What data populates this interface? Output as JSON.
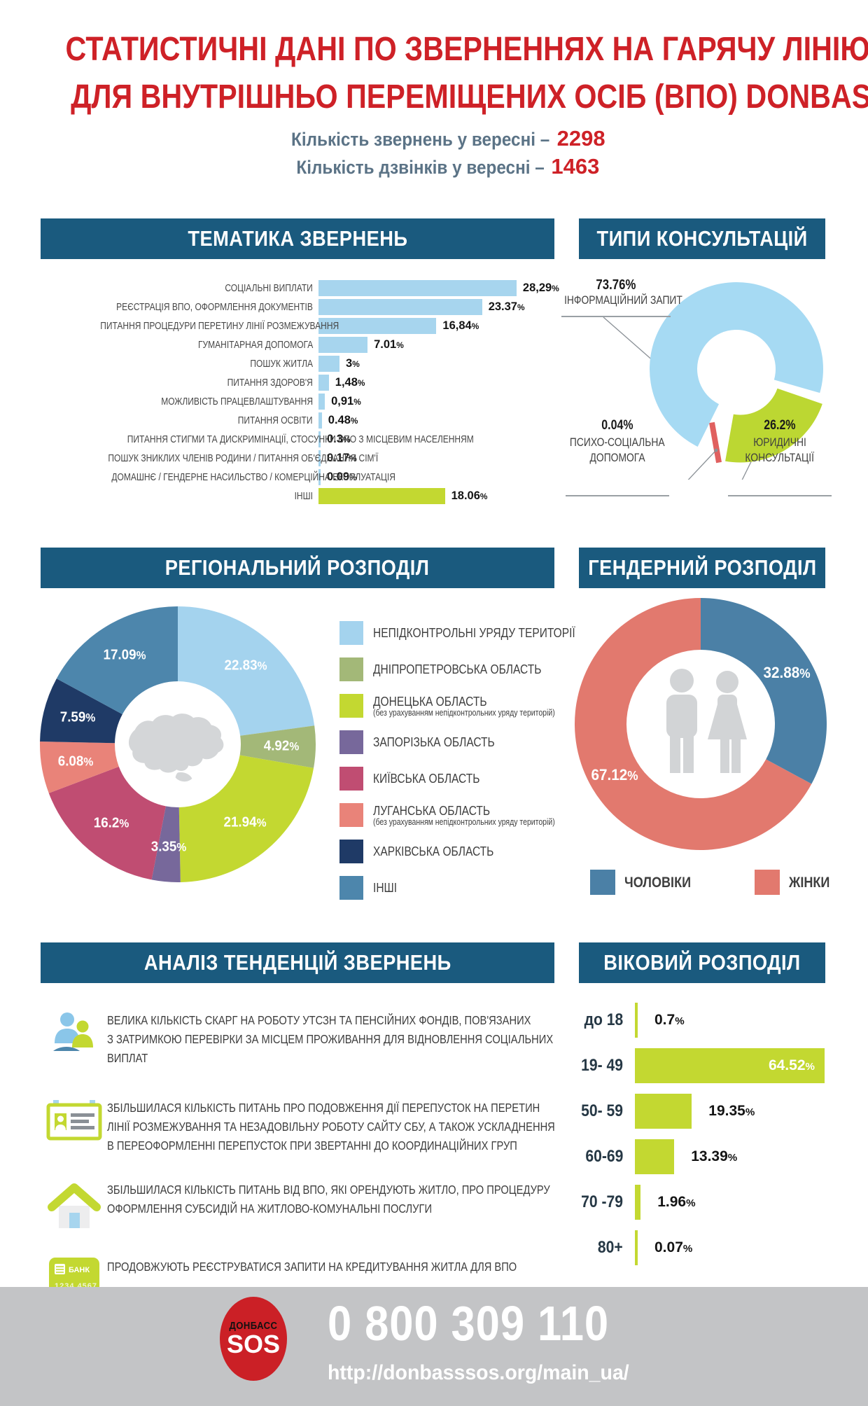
{
  "header": {
    "title_line1": "СТАТИСТИЧНІ ДАНІ ПО ЗВЕРНЕННЯХ НА ГАРЯЧУ ЛІНІЮ",
    "title_line2": "ДЛЯ ВНУТРІШНЬО ПЕРЕМІЩЕНИХ ОСІБ (ВПО) DONBAS SOS",
    "appeals_label": "Кількість звернень у вересні –",
    "appeals_value": "2298",
    "calls_label": "Кількість дзвінків у вересні –",
    "calls_value": "1463"
  },
  "sections": {
    "topics_title": "ТЕМАТИКА ЗВЕРНЕНЬ",
    "types_title": "ТИПИ КОНСУЛЬТАЦІЙ",
    "regional_title": "РЕГІОНАЛЬНИЙ РОЗПОДІЛ",
    "gender_title": "ГЕНДЕРНИЙ РОЗПОДІЛ",
    "trends_title": "АНАЛІЗ ТЕНДЕНЦІЙ ЗВЕРНЕНЬ",
    "age_title": "ВІКОВИЙ РОЗПОДІЛ"
  },
  "colors": {
    "accent_red": "#ce2127",
    "band_blue": "#1a5a7e",
    "slate_text": "#5b7386",
    "bar_blue": "#a7d5ee",
    "lime": "#c3d831",
    "footer_gray": "#c3c4c6"
  },
  "chart_data": [
    {
      "id": "topics",
      "type": "bar",
      "orientation": "horizontal",
      "title": "ТЕМАТИКА ЗВЕРНЕНЬ",
      "categories": [
        "СОЦІАЛЬНІ ВИПЛАТИ",
        "РЕЄСТРАЦІЯ ВПО, ОФОРМЛЕННЯ ДОКУМЕНТІВ",
        "ПИТАННЯ ПРОЦЕДУРИ ПЕРЕТИНУ  ЛІНІЇ РОЗМЕЖУВАННЯ",
        "ГУМАНІТАРНАЯ ДОПОМОГА",
        "ПОШУК ЖИТЛА",
        "ПИТАННЯ ЗДОРОВ'Я",
        "МОЖЛИВІСТЬ ПРАЦЕВЛАШТУВАННЯ",
        "ПИТАННЯ ОСВІТИ",
        "ПИТАННЯ СТИГМИ ТА ДИСКРИМІНАЦІЇ, СТОСУНКИ ВПО З МІСЦЕВИМ НАСЕЛЕННЯМ",
        "ПОШУК ЗНИКЛИХ ЧЛЕНІВ РОДИНИ / ПИТАННЯ ОБ'ЄДНАННЯ СІМ'Ї",
        "ДОМАШНЄ / ГЕНДЕРНЕ НАСИЛЬСТВО / КОМЕРЦІЙНА ЕКСПЛУАТАЦІЯ",
        "ІНШІ"
      ],
      "values": [
        28.29,
        23.37,
        16.84,
        7.01,
        3,
        1.48,
        0.91,
        0.48,
        0.3,
        0.17,
        0.09,
        18.06
      ],
      "value_labels": [
        "28,29%",
        "23.37%",
        "16,84%",
        "7.01%",
        "3%",
        "1,48%",
        "0,91%",
        "0.48%",
        "0.3%",
        "0.17%",
        "0.09%",
        "18.06%"
      ],
      "bar_colors": [
        "#a7d5ee",
        "#a7d5ee",
        "#a7d5ee",
        "#a7d5ee",
        "#a7d5ee",
        "#a7d5ee",
        "#a7d5ee",
        "#a7d5ee",
        "#a7d5ee",
        "#a7d5ee",
        "#a7d5ee",
        "#c3d831"
      ]
    },
    {
      "id": "types",
      "type": "donut",
      "title": "ТИПИ КОНСУЛЬТАЦІЙ",
      "slices": [
        {
          "label": "ІНФОРМАЦІЙНИЙ ЗАПИТ",
          "label_lines": [
            "ІНФОРМАЦІЙНИЙ ЗАПИТ"
          ],
          "value": 73.76,
          "display": "73.76%",
          "color": "#a6daf3"
        },
        {
          "label": "ЮРИДИЧНІ КОНСУЛЬТАЦІЇ",
          "label_lines": [
            "ЮРИДИЧНІ",
            "КОНСУЛЬТАЦІЇ"
          ],
          "value": 26.2,
          "display": "26.2%",
          "color": "#bcd732"
        },
        {
          "label": "ПСИХО-СОЦІАЛЬНА ДОПОМОГА",
          "label_lines": [
            "ПСИХО-СОЦІАЛЬНА",
            "ДОПОМОГА"
          ],
          "value": 0.04,
          "display": "0.04%",
          "color": "#e0605f"
        }
      ]
    },
    {
      "id": "regional",
      "type": "donut",
      "title": "РЕГІОНАЛЬНИЙ РОЗПОДІЛ",
      "slices": [
        {
          "label": "НЕПІДКОНТРОЛЬНІ УРЯДУ ТЕРИТОРІЇ",
          "value": 22.83,
          "display": "22.83%",
          "color": "#a4d3ee"
        },
        {
          "label": "ДНІПРОПЕТРОВСЬКА ОБЛАСТЬ",
          "value": 4.92,
          "display": "4.92%",
          "color": "#a3b878"
        },
        {
          "label": "ДОНЕЦЬКА ОБЛАСТЬ",
          "note": "(без урахуванням непідконтрольних уряду територій)",
          "value": 21.94,
          "display": "21.94%",
          "color": "#c3d831"
        },
        {
          "label": "ЗАПОРІЗЬКА ОБЛАСТЬ",
          "value": 3.35,
          "display": "3.35%",
          "color": "#77689b"
        },
        {
          "label": "КИЇВСЬКА ОБЛАСТЬ",
          "value": 16.2,
          "display": "16.2%",
          "color": "#c04d72"
        },
        {
          "label": "ЛУГАНСЬКА ОБЛАСТЬ",
          "note": "(без урахуванням непідконтрольних уряду територій)",
          "value": 6.08,
          "display": "6.08%",
          "color": "#e98379"
        },
        {
          "label": "ХАРКІВСЬКА ОБЛАСТЬ",
          "value": 7.59,
          "display": "7.59%",
          "color": "#1f3a66"
        },
        {
          "label": "ІНШІ",
          "value": 17.09,
          "display": "17.09%",
          "color": "#4d86ac"
        }
      ]
    },
    {
      "id": "gender",
      "type": "donut",
      "title": "ГЕНДЕРНИЙ РОЗПОДІЛ",
      "slices": [
        {
          "label": "ЧОЛОВІКИ",
          "value": 32.88,
          "display": "32.88%",
          "color": "#4b80a6"
        },
        {
          "label": "ЖІНКИ",
          "value": 67.12,
          "display": "67.12%",
          "color": "#e2796e"
        }
      ]
    },
    {
      "id": "age",
      "type": "bar",
      "orientation": "horizontal",
      "title": "ВІКОВИЙ РОЗПОДІЛ",
      "categories": [
        "до 18",
        "19- 49",
        "50- 59",
        "60-69",
        "70 -79",
        "80+"
      ],
      "values": [
        0.7,
        64.52,
        19.35,
        13.39,
        1.96,
        0.07
      ],
      "value_labels": [
        "0.7%",
        "64.52%",
        "19.35%",
        "13.39%",
        "1.96%",
        "0.07%"
      ],
      "bar_color": "#c3d831"
    }
  ],
  "trends": {
    "card_text": {
      "bank": "БАНК",
      "number": "1234 4567"
    },
    "items": [
      {
        "icon": "people-icon",
        "lines": [
          "ВЕЛИКА КІЛЬКІСТЬ СКАРГ НА РОБОТУ УТСЗН ТА ПЕНСІЙНИХ ФОНДІВ, ПОВ'ЯЗАНИХ",
          "З ЗАТРИМКОЮ ПЕРЕВІРКИ ЗА МІСЦЕМ ПРОЖИВАННЯ ДЛЯ ВІДНОВЛЕННЯ СОЦІАЛЬНИХ",
          "ВИПЛАТ"
        ]
      },
      {
        "icon": "id-card-icon",
        "lines": [
          "ЗБІЛЬШИЛАСЯ КІЛЬКІСТЬ ПИТАНЬ ПРО ПОДОВЖЕННЯ ДІЇ ПЕРЕПУСТОК НА ПЕРЕТИН",
          "ЛІНІЇ РОЗМЕЖУВАННЯ ТА НЕЗАДОВІЛЬНУ РОБОТУ САЙТУ СБУ, А ТАКОЖ УСКЛАДНЕННЯ",
          "В ПЕРЕОФОРМЛЕННІ ПЕРЕПУСТОК ПРИ ЗВЕРТАННІ ДО КООРДИНАЦІЙНИХ ГРУП"
        ]
      },
      {
        "icon": "house-icon",
        "lines": [
          "ЗБІЛЬШИЛАСЯ КІЛЬКІСТЬ ПИТАНЬ ВІД ВПО, ЯКІ ОРЕНДУЮТЬ ЖИТЛО, ПРО ПРОЦЕДУРУ",
          "ОФОРМЛЕННЯ СУБСИДІЙ НА ЖИТЛОВО-КОМУНАЛЬНІ ПОСЛУГИ"
        ]
      },
      {
        "icon": "bank-card-icon",
        "lines": [
          "ПРОДОВЖУЮТЬ РЕЄСТРУВАТИСЯ ЗАПИТИ НА КРЕДИТУВАННЯ ЖИТЛА ДЛЯ ВПО"
        ]
      }
    ]
  },
  "footer": {
    "logo_top": "ДОНБАСС",
    "logo_bottom": "SOS",
    "phone": "0 800 309 110",
    "url": "http://donbasssos.org/main_ua/"
  }
}
